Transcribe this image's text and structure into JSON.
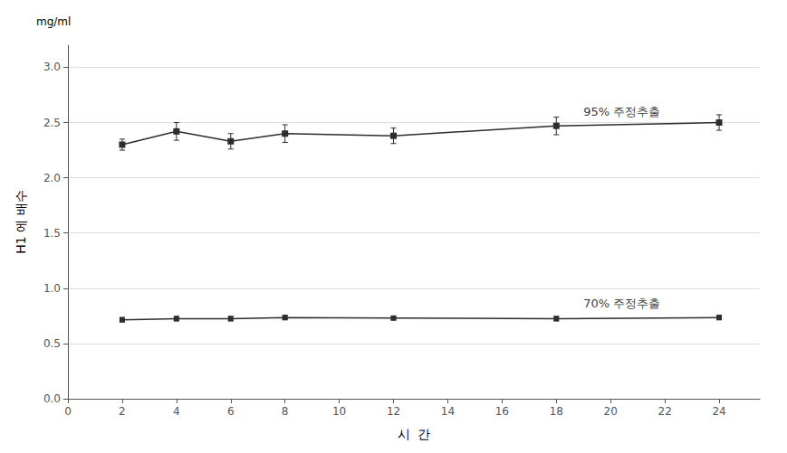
{
  "chart_data": {
    "type": "line",
    "xlabel": "시  간",
    "ylabel": "H1 에 배수",
    "x": [
      2,
      4,
      6,
      8,
      12,
      18,
      24
    ],
    "series": [
      {
        "values": [
          2.3,
          2.42,
          2.33,
          2.4,
          2.38,
          2.47,
          2.5
        ],
        "errors": [
          0.05,
          0.08,
          0.07,
          0.08,
          0.07,
          0.08,
          0.07
        ],
        "color": "#2d2d2d",
        "marker": "square",
        "line_style": "solid"
      },
      {
        "values": [
          0.715,
          0.725,
          0.725,
          0.735,
          0.73,
          0.725,
          0.735
        ],
        "errors": [
          0.02,
          0.02,
          0.02,
          0.02,
          0.015,
          0.02,
          0.02
        ],
        "color": "#2d2d2d",
        "marker": "square",
        "line_style": "solid"
      }
    ],
    "annotations": [
      {
        "text": "95% 주정추출",
        "x": 19.0,
        "y": 2.6
      },
      {
        "text": "70% 주정추출",
        "x": 19.0,
        "y": 0.86
      },
      {
        "text": "mg/ml"
      }
    ],
    "xlim": [
      0,
      25.5
    ],
    "xticks": [
      0,
      2,
      4,
      6,
      8,
      10,
      12,
      14,
      16,
      18,
      20,
      22,
      24
    ],
    "ylim": [
      0,
      3.2
    ],
    "yticks": [
      {
        "value": 0,
        "label": "0.0"
      },
      0.5,
      {
        "value": 1.0,
        "label": "1.0"
      },
      1.5,
      {
        "value": 2.0,
        "label": "2.0"
      },
      2.5,
      {
        "value": 3.0,
        "label": "3.0"
      }
    ],
    "grid": true
  }
}
